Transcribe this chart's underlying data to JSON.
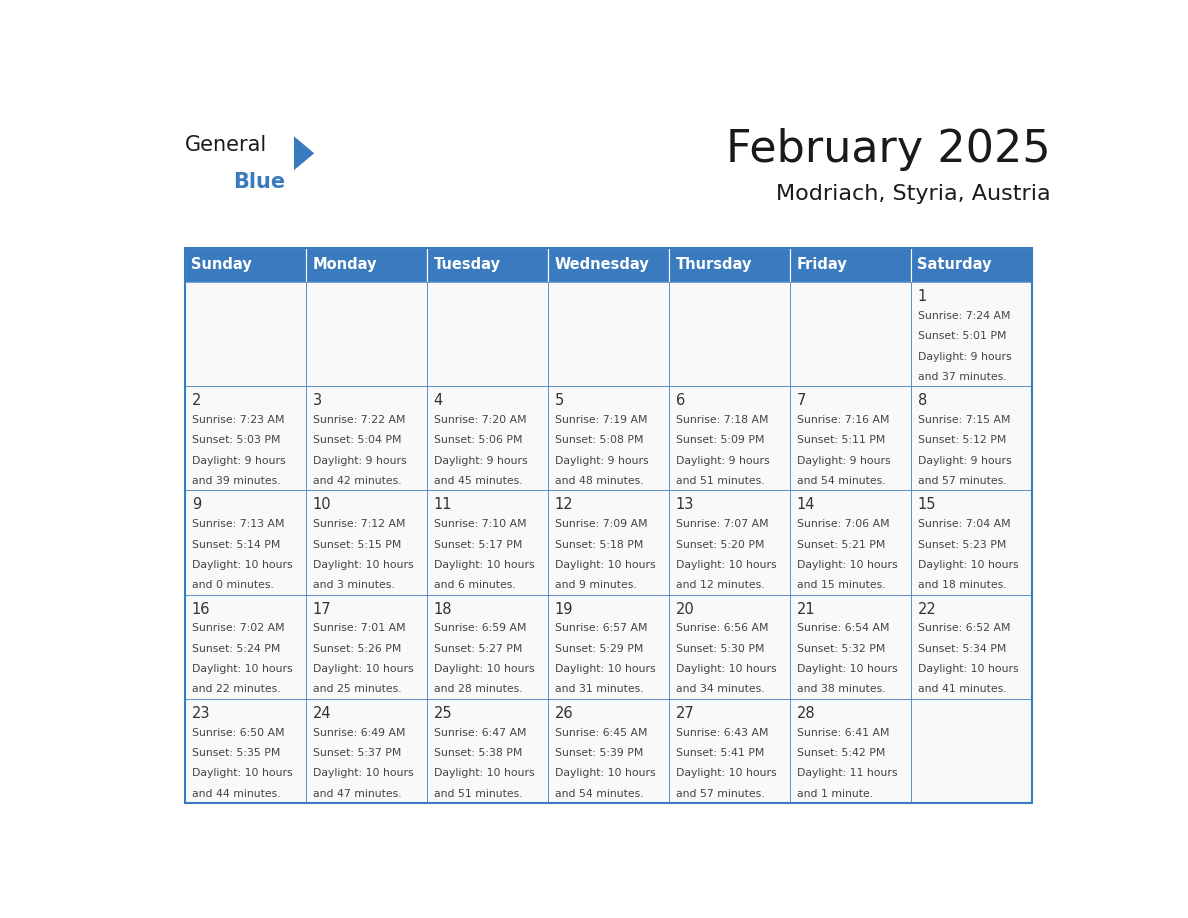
{
  "title": "February 2025",
  "subtitle": "Modriach, Styria, Austria",
  "days_of_week": [
    "Sunday",
    "Monday",
    "Tuesday",
    "Wednesday",
    "Thursday",
    "Friday",
    "Saturday"
  ],
  "header_bg": "#3a7bbf",
  "header_text_color": "#ffffff",
  "cell_bg": "#f9f9f9",
  "border_color": "#3a7bbf",
  "day_num_color": "#333333",
  "title_color": "#1a1a1a",
  "logo_blue_color": "#3a7bbf",
  "logo_triangle_color": "#3a7bbf",
  "calendar": [
    [
      null,
      null,
      null,
      null,
      null,
      null,
      {
        "day": 1,
        "sunrise": "7:24 AM",
        "sunset": "5:01 PM",
        "dl1": "Daylight: 9 hours",
        "dl2": "and 37 minutes."
      }
    ],
    [
      {
        "day": 2,
        "sunrise": "7:23 AM",
        "sunset": "5:03 PM",
        "dl1": "Daylight: 9 hours",
        "dl2": "and 39 minutes."
      },
      {
        "day": 3,
        "sunrise": "7:22 AM",
        "sunset": "5:04 PM",
        "dl1": "Daylight: 9 hours",
        "dl2": "and 42 minutes."
      },
      {
        "day": 4,
        "sunrise": "7:20 AM",
        "sunset": "5:06 PM",
        "dl1": "Daylight: 9 hours",
        "dl2": "and 45 minutes."
      },
      {
        "day": 5,
        "sunrise": "7:19 AM",
        "sunset": "5:08 PM",
        "dl1": "Daylight: 9 hours",
        "dl2": "and 48 minutes."
      },
      {
        "day": 6,
        "sunrise": "7:18 AM",
        "sunset": "5:09 PM",
        "dl1": "Daylight: 9 hours",
        "dl2": "and 51 minutes."
      },
      {
        "day": 7,
        "sunrise": "7:16 AM",
        "sunset": "5:11 PM",
        "dl1": "Daylight: 9 hours",
        "dl2": "and 54 minutes."
      },
      {
        "day": 8,
        "sunrise": "7:15 AM",
        "sunset": "5:12 PM",
        "dl1": "Daylight: 9 hours",
        "dl2": "and 57 minutes."
      }
    ],
    [
      {
        "day": 9,
        "sunrise": "7:13 AM",
        "sunset": "5:14 PM",
        "dl1": "Daylight: 10 hours",
        "dl2": "and 0 minutes."
      },
      {
        "day": 10,
        "sunrise": "7:12 AM",
        "sunset": "5:15 PM",
        "dl1": "Daylight: 10 hours",
        "dl2": "and 3 minutes."
      },
      {
        "day": 11,
        "sunrise": "7:10 AM",
        "sunset": "5:17 PM",
        "dl1": "Daylight: 10 hours",
        "dl2": "and 6 minutes."
      },
      {
        "day": 12,
        "sunrise": "7:09 AM",
        "sunset": "5:18 PM",
        "dl1": "Daylight: 10 hours",
        "dl2": "and 9 minutes."
      },
      {
        "day": 13,
        "sunrise": "7:07 AM",
        "sunset": "5:20 PM",
        "dl1": "Daylight: 10 hours",
        "dl2": "and 12 minutes."
      },
      {
        "day": 14,
        "sunrise": "7:06 AM",
        "sunset": "5:21 PM",
        "dl1": "Daylight: 10 hours",
        "dl2": "and 15 minutes."
      },
      {
        "day": 15,
        "sunrise": "7:04 AM",
        "sunset": "5:23 PM",
        "dl1": "Daylight: 10 hours",
        "dl2": "and 18 minutes."
      }
    ],
    [
      {
        "day": 16,
        "sunrise": "7:02 AM",
        "sunset": "5:24 PM",
        "dl1": "Daylight: 10 hours",
        "dl2": "and 22 minutes."
      },
      {
        "day": 17,
        "sunrise": "7:01 AM",
        "sunset": "5:26 PM",
        "dl1": "Daylight: 10 hours",
        "dl2": "and 25 minutes."
      },
      {
        "day": 18,
        "sunrise": "6:59 AM",
        "sunset": "5:27 PM",
        "dl1": "Daylight: 10 hours",
        "dl2": "and 28 minutes."
      },
      {
        "day": 19,
        "sunrise": "6:57 AM",
        "sunset": "5:29 PM",
        "dl1": "Daylight: 10 hours",
        "dl2": "and 31 minutes."
      },
      {
        "day": 20,
        "sunrise": "6:56 AM",
        "sunset": "5:30 PM",
        "dl1": "Daylight: 10 hours",
        "dl2": "and 34 minutes."
      },
      {
        "day": 21,
        "sunrise": "6:54 AM",
        "sunset": "5:32 PM",
        "dl1": "Daylight: 10 hours",
        "dl2": "and 38 minutes."
      },
      {
        "day": 22,
        "sunrise": "6:52 AM",
        "sunset": "5:34 PM",
        "dl1": "Daylight: 10 hours",
        "dl2": "and 41 minutes."
      }
    ],
    [
      {
        "day": 23,
        "sunrise": "6:50 AM",
        "sunset": "5:35 PM",
        "dl1": "Daylight: 10 hours",
        "dl2": "and 44 minutes."
      },
      {
        "day": 24,
        "sunrise": "6:49 AM",
        "sunset": "5:37 PM",
        "dl1": "Daylight: 10 hours",
        "dl2": "and 47 minutes."
      },
      {
        "day": 25,
        "sunrise": "6:47 AM",
        "sunset": "5:38 PM",
        "dl1": "Daylight: 10 hours",
        "dl2": "and 51 minutes."
      },
      {
        "day": 26,
        "sunrise": "6:45 AM",
        "sunset": "5:39 PM",
        "dl1": "Daylight: 10 hours",
        "dl2": "and 54 minutes."
      },
      {
        "day": 27,
        "sunrise": "6:43 AM",
        "sunset": "5:41 PM",
        "dl1": "Daylight: 10 hours",
        "dl2": "and 57 minutes."
      },
      {
        "day": 28,
        "sunrise": "6:41 AM",
        "sunset": "5:42 PM",
        "dl1": "Daylight: 11 hours",
        "dl2": "and 1 minute."
      },
      null
    ]
  ]
}
